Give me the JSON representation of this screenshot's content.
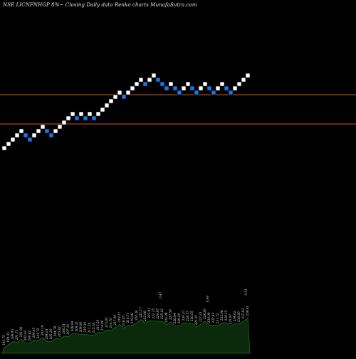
{
  "title": "NSE LICNFNHGP 8%~ Closing Daily data Renko charts MunafaSutra.com",
  "colors": {
    "background": "#000000",
    "up_brick": "#ffffff",
    "down_brick": "#1e74e8",
    "line": "#c4571e",
    "volume_fill": "#0b2a0b",
    "volume_stroke": "#1f6a1f",
    "label": "#dddddd"
  },
  "chart_data": {
    "type": "renko",
    "title": "NSE LICNFNHGP 8%~ Closing Daily data Renko charts MunafaSutra.com",
    "xlabel": "",
    "ylabel": "",
    "grid": false,
    "brick_levels": [
      0,
      1,
      2,
      3,
      4,
      3,
      2,
      3,
      4,
      5,
      4,
      3,
      4,
      5,
      6,
      7,
      8,
      7,
      8,
      7,
      8,
      7,
      8,
      9,
      10,
      11,
      12,
      13,
      12,
      13,
      14,
      15,
      16,
      15,
      16,
      17,
      16,
      15,
      14,
      15,
      14,
      13,
      14,
      15,
      14,
      13,
      14,
      15,
      14,
      13,
      14,
      15,
      14,
      13,
      14,
      15,
      16,
      17
    ],
    "brick_directions": [
      "up",
      "up",
      "up",
      "up",
      "up",
      "down",
      "down",
      "up",
      "up",
      "up",
      "down",
      "down",
      "up",
      "up",
      "up",
      "up",
      "up",
      "down",
      "up",
      "down",
      "up",
      "down",
      "up",
      "up",
      "up",
      "up",
      "up",
      "up",
      "down",
      "up",
      "up",
      "up",
      "up",
      "down",
      "up",
      "up",
      "down",
      "down",
      "down",
      "up",
      "down",
      "down",
      "up",
      "up",
      "down",
      "down",
      "up",
      "up",
      "down",
      "down",
      "up",
      "up",
      "down",
      "down",
      "up",
      "up",
      "up",
      "up"
    ],
    "reference_lines": [
      "upper",
      "lower"
    ],
    "bottom_labels": [
      "195.75",
      "199.35",
      "199.95",
      "201.71",
      "201.96",
      "202.41",
      "200.82",
      "200.45",
      "201.72",
      "203.19",
      "204.63",
      "205.16",
      "204.79",
      "205.83",
      "206.51",
      "207.16",
      "208.04",
      "209.31",
      "209.90",
      "210.34",
      "211.26",
      "212.18",
      "213.50",
      "214.96",
      "215.83",
      "216.76",
      "217.49",
      "219.11",
      "218.05",
      "216.71",
      "219.48",
      "220.36",
      "221.17",
      "222.68",
      "223.91",
      "221.15",
      "224.97",
      "225.43",
      "226.08",
      "227.50",
      "228.94",
      "229.20",
      "230.37",
      "228.17",
      "226.55",
      "225.91",
      "227.23",
      "228.80",
      "230.09",
      "232.40",
      "231.72",
      "233.48",
      "234.15",
      "235.91",
      "234.62",
      "236.80",
      "237.93",
      "239.61"
    ],
    "volume_labels": [
      "0.47",
      "0.44",
      "0.51"
    ]
  }
}
